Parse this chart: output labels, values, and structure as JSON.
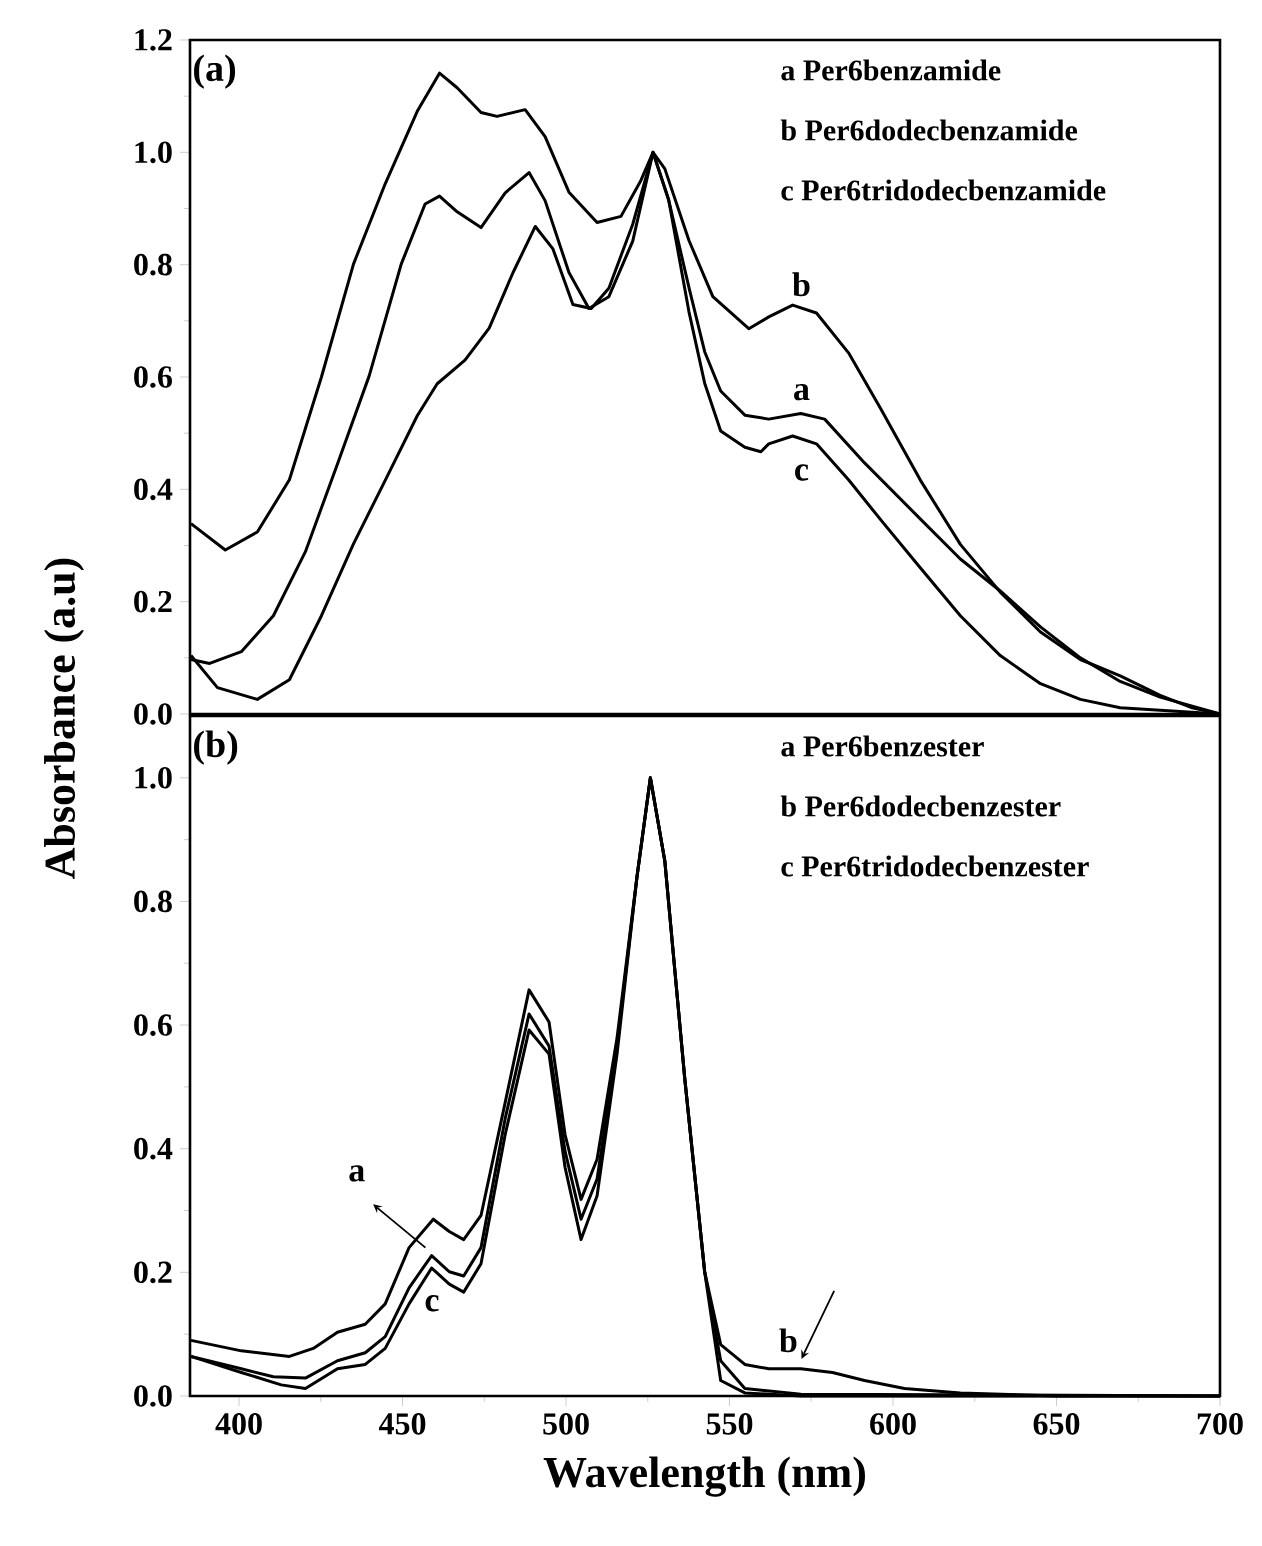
{
  "chart_data": [
    {
      "type": "line",
      "ylabel": "Absorbance (a.u)",
      "xlim": [
        385,
        700
      ],
      "ylim": [
        0,
        1.2
      ],
      "tick_labels": "y",
      "yticks": [
        {
          "value": 0,
          "label": "0.0"
        },
        {
          "value": 0.2,
          "label": "0.2"
        },
        {
          "value": 0.4,
          "label": "0.4"
        },
        {
          "value": 0.6,
          "label": "0.6"
        },
        {
          "value": 0.8,
          "label": "0.8"
        },
        {
          "value": 1.0,
          "label": "1.0"
        },
        {
          "value": 1.2,
          "label": "1.2"
        }
      ],
      "annotations": [
        "(a)",
        "a Per6benzamide",
        "b Per6dodecbenzamide",
        "c Per6tridodecbenzamide"
      ],
      "series": [
        {
          "name": "a",
          "color": "#000000",
          "x": [
            385.3,
            391.0,
            400.7,
            410.5,
            420.3,
            430.1,
            439.8,
            449.6,
            456.9,
            461.3,
            466.7,
            474.0,
            481.4,
            488.7,
            493.6,
            500.9,
            507.0,
            513.1,
            520.4,
            526.6,
            531.4,
            537.6,
            542.4,
            547.3,
            554.7,
            562.0,
            571.8,
            579.1,
            591.3,
            608.4,
            620.6,
            632.8,
            645.1,
            657.3,
            669.5,
            681.7,
            700.0
          ],
          "values": [
            0.097,
            0.09,
            0.111,
            0.175,
            0.289,
            0.445,
            0.602,
            0.801,
            0.908,
            0.922,
            0.894,
            0.866,
            0.928,
            0.964,
            0.914,
            0.786,
            0.722,
            0.743,
            0.842,
            1.0,
            0.915,
            0.759,
            0.645,
            0.575,
            0.532,
            0.525,
            0.535,
            0.525,
            0.447,
            0.347,
            0.276,
            0.219,
            0.155,
            0.1,
            0.058,
            0.03,
            0.0
          ]
        },
        {
          "name": "b",
          "color": "#000000",
          "x": [
            385.3,
            395.8,
            405.6,
            415.4,
            425.2,
            435.0,
            444.7,
            454.5,
            461.3,
            466.7,
            474.0,
            478.9,
            487.5,
            493.6,
            500.9,
            509.5,
            516.8,
            522.9,
            526.6,
            530.2,
            537.6,
            544.9,
            555.9,
            562.0,
            569.3,
            576.6,
            586.4,
            596.2,
            608.4,
            620.6,
            632.8,
            645.1,
            657.3,
            669.5,
            681.7,
            691.5,
            700.0
          ],
          "values": [
            0.339,
            0.292,
            0.324,
            0.417,
            0.6,
            0.801,
            0.944,
            1.073,
            1.141,
            1.115,
            1.071,
            1.064,
            1.076,
            1.028,
            0.929,
            0.875,
            0.886,
            0.95,
            1.0,
            0.971,
            0.843,
            0.743,
            0.686,
            0.707,
            0.728,
            0.714,
            0.643,
            0.544,
            0.416,
            0.302,
            0.217,
            0.146,
            0.097,
            0.068,
            0.033,
            0.011,
            0.0
          ]
        },
        {
          "name": "c",
          "color": "#000000",
          "x": [
            385.3,
            393.4,
            405.6,
            415.4,
            425.2,
            435.0,
            444.7,
            454.5,
            460.6,
            469.1,
            476.5,
            483.8,
            490.6,
            496.0,
            502.1,
            507.7,
            513.1,
            520.4,
            526.6,
            531.4,
            537.6,
            542.4,
            547.3,
            554.7,
            559.6,
            562.0,
            569.3,
            576.6,
            586.4,
            596.2,
            608.4,
            620.6,
            632.8,
            645.1,
            657.3,
            669.5,
            700.0
          ],
          "values": [
            0.104,
            0.047,
            0.026,
            0.061,
            0.175,
            0.303,
            0.416,
            0.531,
            0.588,
            0.63,
            0.687,
            0.786,
            0.868,
            0.828,
            0.729,
            0.722,
            0.758,
            0.872,
            1.0,
            0.915,
            0.716,
            0.589,
            0.504,
            0.475,
            0.467,
            0.481,
            0.495,
            0.481,
            0.417,
            0.346,
            0.26,
            0.175,
            0.104,
            0.054,
            0.026,
            0.011,
            0.0
          ]
        }
      ]
    },
    {
      "type": "line",
      "xlabel": "Wavelength (nm)",
      "xlim": [
        385,
        700
      ],
      "ylim": [
        0,
        1.1
      ],
      "xticks": [
        400,
        450,
        500,
        550,
        600,
        650,
        700
      ],
      "yticks": [
        {
          "value": 0,
          "label": "0.0"
        },
        {
          "value": 0.2,
          "label": "0.2"
        },
        {
          "value": 0.4,
          "label": "0.4"
        },
        {
          "value": 0.6,
          "label": "0.6"
        },
        {
          "value": 0.8,
          "label": "0.8"
        },
        {
          "value": 1.0,
          "label": "1.0"
        }
      ],
      "annotations": [
        "(b)",
        "a Per6benzester",
        "b Per6dodecbenzester",
        "c Per6tridodecbenzester"
      ],
      "series": [
        {
          "name": "a",
          "color": "#000000",
          "x": [
            385.3,
            400.7,
            415.4,
            422.7,
            430.1,
            438.6,
            444.7,
            452.0,
            459.4,
            464.3,
            468.7,
            474.0,
            481.4,
            488.7,
            494.8,
            499.7,
            504.6,
            509.5,
            515.6,
            521.7,
            525.8,
            530.2,
            536.3,
            542.4,
            547.3,
            554.7,
            571.8,
            700.0
          ],
          "values": [
            0.09,
            0.073,
            0.064,
            0.077,
            0.103,
            0.116,
            0.149,
            0.24,
            0.286,
            0.266,
            0.253,
            0.292,
            0.475,
            0.657,
            0.605,
            0.423,
            0.318,
            0.383,
            0.579,
            0.84,
            1.0,
            0.866,
            0.514,
            0.201,
            0.025,
            0.005,
            0.0,
            0.0
          ]
        },
        {
          "name": "b",
          "color": "#000000",
          "x": [
            385.3,
            400.7,
            410.5,
            420.3,
            430.1,
            438.6,
            444.7,
            452.0,
            458.9,
            464.3,
            468.7,
            474.0,
            481.4,
            488.7,
            494.8,
            499.7,
            504.6,
            509.5,
            515.6,
            521.7,
            525.8,
            530.2,
            536.3,
            542.4,
            547.3,
            554.7,
            562.0,
            571.8,
            581.5,
            591.3,
            603.5,
            620.6,
            649.9,
            700.0
          ],
          "values": [
            0.064,
            0.044,
            0.031,
            0.029,
            0.057,
            0.07,
            0.096,
            0.175,
            0.227,
            0.201,
            0.194,
            0.24,
            0.449,
            0.618,
            0.566,
            0.396,
            0.286,
            0.351,
            0.566,
            0.84,
            1.0,
            0.866,
            0.514,
            0.201,
            0.083,
            0.051,
            0.044,
            0.044,
            0.038,
            0.025,
            0.012,
            0.005,
            0.0,
            0.0
          ]
        },
        {
          "name": "c",
          "color": "#000000",
          "x": [
            385.3,
            400.7,
            412.9,
            420.3,
            430.1,
            438.6,
            444.7,
            452.0,
            458.9,
            464.3,
            468.7,
            474.0,
            481.4,
            488.7,
            494.8,
            499.7,
            504.6,
            509.5,
            515.6,
            521.7,
            525.8,
            530.2,
            536.3,
            542.4,
            547.3,
            554.7,
            571.8,
            700.0
          ],
          "values": [
            0.064,
            0.038,
            0.018,
            0.012,
            0.044,
            0.051,
            0.077,
            0.149,
            0.207,
            0.181,
            0.168,
            0.214,
            0.423,
            0.592,
            0.553,
            0.37,
            0.253,
            0.324,
            0.553,
            0.84,
            1.0,
            0.866,
            0.514,
            0.201,
            0.057,
            0.012,
            0.003,
            0.0
          ]
        }
      ]
    }
  ]
}
